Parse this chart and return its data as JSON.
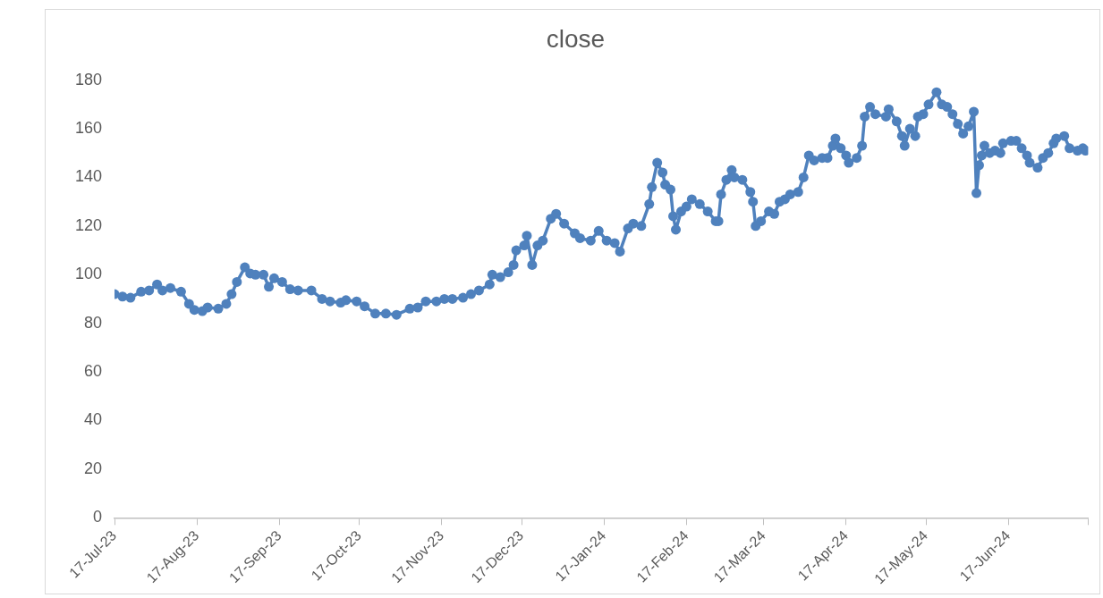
{
  "chart_data": {
    "type": "line",
    "title": "close",
    "x": [
      "2023-07-17",
      "2023-07-20",
      "2023-07-23",
      "2023-07-27",
      "2023-07-30",
      "2023-08-02",
      "2023-08-04",
      "2023-08-07",
      "2023-08-11",
      "2023-08-14",
      "2023-08-16",
      "2023-08-19",
      "2023-08-21",
      "2023-08-25",
      "2023-08-28",
      "2023-08-30",
      "2023-09-01",
      "2023-09-04",
      "2023-09-06",
      "2023-09-08",
      "2023-09-11",
      "2023-09-13",
      "2023-09-15",
      "2023-09-18",
      "2023-09-21",
      "2023-09-24",
      "2023-09-29",
      "2023-10-03",
      "2023-10-06",
      "2023-10-10",
      "2023-10-12",
      "2023-10-16",
      "2023-10-19",
      "2023-10-23",
      "2023-10-27",
      "2023-10-31",
      "2023-11-05",
      "2023-11-08",
      "2023-11-11",
      "2023-11-15",
      "2023-11-18",
      "2023-11-21",
      "2023-11-25",
      "2023-11-28",
      "2023-12-01",
      "2023-12-05",
      "2023-12-06",
      "2023-12-09",
      "2023-12-12",
      "2023-12-14",
      "2023-12-15",
      "2023-12-18",
      "2023-12-19",
      "2023-12-21",
      "2023-12-23",
      "2023-12-25",
      "2023-12-28",
      "2023-12-30",
      "2024-01-02",
      "2024-01-06",
      "2024-01-08",
      "2024-01-12",
      "2024-01-15",
      "2024-01-18",
      "2024-01-21",
      "2024-01-23",
      "2024-01-26",
      "2024-01-28",
      "2024-01-31",
      "2024-02-03",
      "2024-02-04",
      "2024-02-06",
      "2024-02-08",
      "2024-02-09",
      "2024-02-11",
      "2024-02-12",
      "2024-02-13",
      "2024-02-15",
      "2024-02-17",
      "2024-02-19",
      "2024-02-22",
      "2024-02-25",
      "2024-02-28",
      "2024-02-29",
      "2024-03-01",
      "2024-03-03",
      "2024-03-05",
      "2024-03-06",
      "2024-03-09",
      "2024-03-12",
      "2024-03-13",
      "2024-03-14",
      "2024-03-16",
      "2024-03-19",
      "2024-03-21",
      "2024-03-23",
      "2024-03-25",
      "2024-03-27",
      "2024-03-30",
      "2024-04-01",
      "2024-04-03",
      "2024-04-05",
      "2024-04-08",
      "2024-04-10",
      "2024-04-12",
      "2024-04-13",
      "2024-04-15",
      "2024-04-17",
      "2024-04-18",
      "2024-04-21",
      "2024-04-23",
      "2024-04-24",
      "2024-04-26",
      "2024-04-28",
      "2024-05-02",
      "2024-05-03",
      "2024-05-06",
      "2024-05-08",
      "2024-05-09",
      "2024-05-11",
      "2024-05-13",
      "2024-05-14",
      "2024-05-16",
      "2024-05-18",
      "2024-05-21",
      "2024-05-23",
      "2024-05-25",
      "2024-05-27",
      "2024-05-29",
      "2024-05-31",
      "2024-06-02",
      "2024-06-04",
      "2024-06-05",
      "2024-06-06",
      "2024-06-07",
      "2024-06-08",
      "2024-06-10",
      "2024-06-12",
      "2024-06-14",
      "2024-06-15",
      "2024-06-18",
      "2024-06-20",
      "2024-06-22",
      "2024-06-24",
      "2024-06-25",
      "2024-06-28",
      "2024-06-30",
      "2024-07-02",
      "2024-07-04",
      "2024-07-05",
      "2024-07-08",
      "2024-07-10",
      "2024-07-13",
      "2024-07-15",
      "2024-07-16"
    ],
    "series": [
      {
        "color": "#4f81bd",
        "values": [
          92,
          91,
          90.5,
          93,
          93.5,
          96,
          93.5,
          94.5,
          93,
          88,
          85.5,
          85,
          86.5,
          86,
          88,
          92,
          97,
          103,
          100.5,
          100,
          100,
          95,
          98.5,
          97,
          94,
          93.5,
          93.5,
          90,
          89,
          88.5,
          89.5,
          89,
          87,
          84,
          84,
          83.5,
          86,
          86.5,
          89,
          89,
          90,
          90,
          90.5,
          92,
          93.5,
          96,
          100,
          99,
          101,
          104,
          110,
          112,
          116,
          104,
          112,
          114,
          123,
          125,
          121,
          117,
          115,
          114,
          118,
          114,
          113,
          109.5,
          119,
          121,
          120,
          129,
          136,
          146,
          142,
          137,
          135,
          124,
          118.5,
          126,
          128,
          131,
          129,
          126,
          122,
          122,
          133,
          139,
          143,
          140,
          139,
          134,
          130,
          120,
          122,
          126,
          125,
          130,
          131,
          133,
          134,
          140,
          149,
          147,
          148,
          148,
          153,
          156,
          152,
          149,
          146,
          148,
          153,
          165,
          169,
          166,
          165,
          168,
          163,
          157,
          153,
          160,
          157,
          165,
          166,
          170,
          175,
          170,
          169,
          166,
          162,
          158,
          161,
          167,
          133.5,
          145,
          149,
          153,
          150,
          151,
          150,
          154,
          155,
          155,
          152,
          149,
          146,
          144,
          148,
          150,
          154,
          156,
          157,
          152,
          151,
          152,
          151
        ]
      }
    ],
    "xlim": [
      "2023-07-17",
      "2024-07-17"
    ],
    "xticks": [
      {
        "value": "2023-07-17",
        "label": "17-Jul-23"
      },
      {
        "value": "2023-08-17",
        "label": "17-Aug-23"
      },
      {
        "value": "2023-09-17",
        "label": "17-Sep-23"
      },
      {
        "value": "2023-10-17",
        "label": "17-Oct-23"
      },
      {
        "value": "2023-11-17",
        "label": "17-Nov-23"
      },
      {
        "value": "2023-12-17",
        "label": "17-Dec-23"
      },
      {
        "value": "2024-01-17",
        "label": "17-Jan-24"
      },
      {
        "value": "2024-02-17",
        "label": "17-Feb-24"
      },
      {
        "value": "2024-03-17",
        "label": "17-Mar-24"
      },
      {
        "value": "2024-04-17",
        "label": "17-Apr-24"
      },
      {
        "value": "2024-05-17",
        "label": "17-May-24"
      },
      {
        "value": "2024-06-17",
        "label": "17-Jun-24"
      },
      {
        "value": "2024-07-17",
        "label": null
      }
    ],
    "ylim": [
      0,
      180
    ],
    "yticks": [
      0,
      20,
      40,
      60,
      80,
      100,
      120,
      140,
      160,
      180
    ],
    "grid": false,
    "legend": false,
    "marker": "circle",
    "line_style": "solid"
  }
}
